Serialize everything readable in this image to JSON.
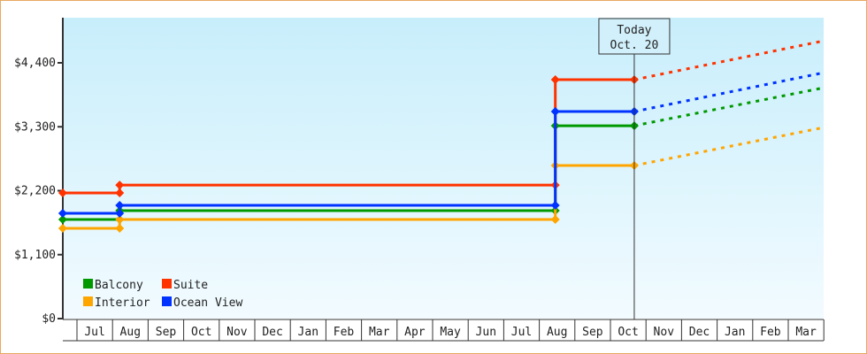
{
  "chart_data": {
    "type": "line",
    "step": true,
    "ylim": [
      0,
      4750
    ],
    "yticks": [
      0,
      1100,
      2200,
      3300,
      4400
    ],
    "ytick_labels": [
      "$0",
      "$1,100",
      "$2,200",
      "$3,300",
      "$4,400"
    ],
    "x_categories": [
      "Jul",
      "Aug",
      "Sep",
      "Oct",
      "Nov",
      "Dec",
      "Jan",
      "Feb",
      "Mar",
      "Apr",
      "May",
      "Jun",
      "Jul",
      "Aug",
      "Sep",
      "Oct",
      "Nov",
      "Dec",
      "Jan",
      "Feb",
      "Mar"
    ],
    "x_unit_note": "x in category units: 0 = start of first Jul column",
    "grid": false,
    "legend_placement": "bottom-left",
    "today_marker": {
      "x": 15.67,
      "line1": "Today",
      "line2": "Oct. 20"
    },
    "series": [
      {
        "name": "Balcony",
        "color": "#009900",
        "points": [
          [
            -0.4,
            1705
          ],
          [
            1.2,
            1705
          ],
          [
            1.2,
            1857
          ],
          [
            13.45,
            1857
          ],
          [
            13.45,
            3318
          ],
          [
            15.67,
            3318
          ]
        ],
        "projection": [
          [
            15.67,
            3318
          ],
          [
            21.0,
            3972
          ]
        ]
      },
      {
        "name": "Suite",
        "color": "#ff3300",
        "points": [
          [
            -0.4,
            2162
          ],
          [
            1.2,
            2162
          ],
          [
            1.2,
            2298
          ],
          [
            13.45,
            2298
          ],
          [
            13.45,
            4110
          ],
          [
            15.67,
            4110
          ]
        ],
        "projection": [
          [
            15.67,
            4110
          ],
          [
            21.0,
            4779
          ]
        ]
      },
      {
        "name": "Interior",
        "color": "#ffa500",
        "points": [
          [
            -0.4,
            1553
          ],
          [
            1.2,
            1553
          ],
          [
            1.2,
            1705
          ],
          [
            13.45,
            1705
          ],
          [
            13.45,
            2633
          ],
          [
            15.67,
            2633
          ]
        ],
        "projection": [
          [
            15.67,
            2633
          ],
          [
            21.0,
            3288
          ]
        ]
      },
      {
        "name": "Ocean View",
        "color": "#0033ff",
        "points": [
          [
            -0.4,
            1811
          ],
          [
            1.2,
            1811
          ],
          [
            1.2,
            1948
          ],
          [
            13.45,
            1948
          ],
          [
            13.45,
            3562
          ],
          [
            15.67,
            3562
          ]
        ],
        "projection": [
          [
            15.67,
            3562
          ],
          [
            21.0,
            4231
          ]
        ]
      }
    ]
  }
}
